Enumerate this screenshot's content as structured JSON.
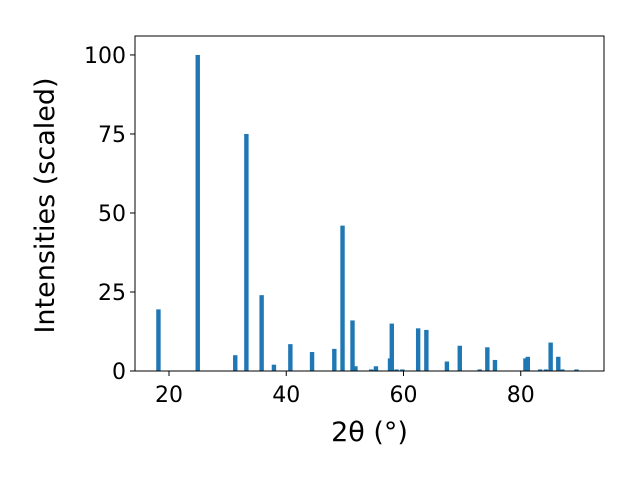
{
  "chart_data": {
    "type": "bar",
    "xlabel": "2θ (°)",
    "ylabel": "Intensities (scaled)",
    "xlim": [
      14.2,
      94.2
    ],
    "ylim": [
      0,
      106
    ],
    "grid": false,
    "bar_color": "#1f77b4",
    "x_ticks": [
      20,
      40,
      60,
      80
    ],
    "x_tick_labels": [
      "20",
      "40",
      "60",
      "80"
    ],
    "y_ticks": [
      0,
      25,
      50,
      75,
      100
    ],
    "y_tick_labels": [
      "0",
      "25",
      "50",
      "75",
      "100"
    ],
    "bar_width": 0.75,
    "x": [
      18.2,
      24.9,
      31.3,
      33.2,
      35.8,
      37.9,
      40.7,
      44.4,
      48.2,
      49.6,
      51.3,
      51.8,
      54.5,
      55.3,
      57.7,
      58.0,
      58.8,
      59.8,
      62.5,
      63.9,
      67.4,
      69.6,
      73.0,
      74.3,
      75.6,
      80.8,
      81.2,
      83.3,
      84.3,
      85.1,
      86.4,
      87.1,
      89.5
    ],
    "values": [
      19.5,
      100,
      5,
      75,
      24,
      2,
      8.5,
      6,
      7,
      46,
      16,
      1.5,
      0.5,
      1.5,
      4,
      15,
      0.5,
      0.5,
      13.5,
      13,
      3,
      8,
      0.5,
      7.5,
      3.5,
      4,
      4.5,
      0.5,
      0.5,
      9,
      4.5,
      0.5,
      0.5
    ]
  }
}
